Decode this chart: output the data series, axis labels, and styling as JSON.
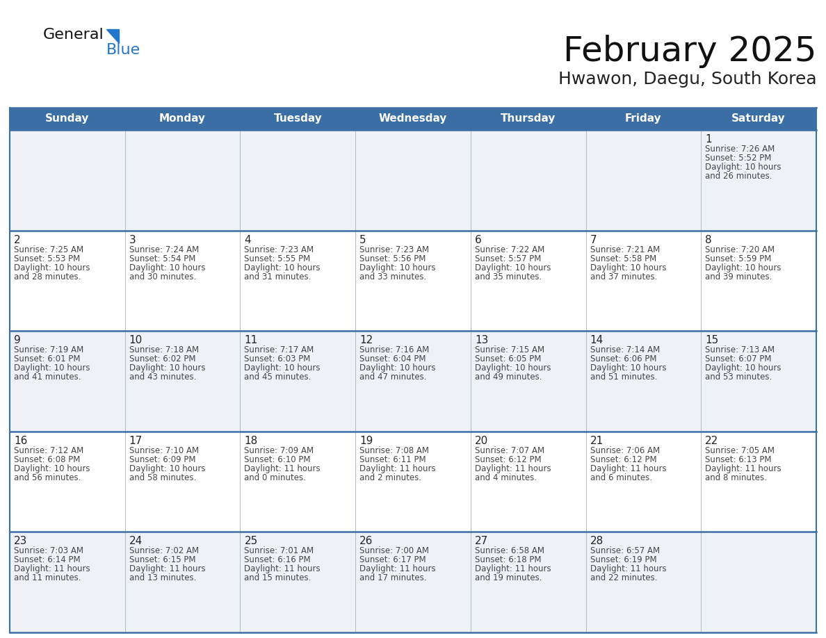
{
  "title": "February 2025",
  "subtitle": "Hwawon, Daegu, South Korea",
  "title_color": "#111111",
  "subtitle_color": "#222222",
  "header_bg": "#3a6ea5",
  "header_text_color": "#ffffff",
  "row_bg_light": "#eef2f7",
  "row_bg_white": "#ffffff",
  "cell_border_color": "#3a6ea5",
  "grid_line_color": "#b0b8c8",
  "days_of_week": [
    "Sunday",
    "Monday",
    "Tuesday",
    "Wednesday",
    "Thursday",
    "Friday",
    "Saturday"
  ],
  "calendar": [
    [
      {
        "day": "",
        "lines": []
      },
      {
        "day": "",
        "lines": []
      },
      {
        "day": "",
        "lines": []
      },
      {
        "day": "",
        "lines": []
      },
      {
        "day": "",
        "lines": []
      },
      {
        "day": "",
        "lines": []
      },
      {
        "day": "1",
        "lines": [
          "Sunrise: 7:26 AM",
          "Sunset: 5:52 PM",
          "Daylight: 10 hours",
          "and 26 minutes."
        ]
      }
    ],
    [
      {
        "day": "2",
        "lines": [
          "Sunrise: 7:25 AM",
          "Sunset: 5:53 PM",
          "Daylight: 10 hours",
          "and 28 minutes."
        ]
      },
      {
        "day": "3",
        "lines": [
          "Sunrise: 7:24 AM",
          "Sunset: 5:54 PM",
          "Daylight: 10 hours",
          "and 30 minutes."
        ]
      },
      {
        "day": "4",
        "lines": [
          "Sunrise: 7:23 AM",
          "Sunset: 5:55 PM",
          "Daylight: 10 hours",
          "and 31 minutes."
        ]
      },
      {
        "day": "5",
        "lines": [
          "Sunrise: 7:23 AM",
          "Sunset: 5:56 PM",
          "Daylight: 10 hours",
          "and 33 minutes."
        ]
      },
      {
        "day": "6",
        "lines": [
          "Sunrise: 7:22 AM",
          "Sunset: 5:57 PM",
          "Daylight: 10 hours",
          "and 35 minutes."
        ]
      },
      {
        "day": "7",
        "lines": [
          "Sunrise: 7:21 AM",
          "Sunset: 5:58 PM",
          "Daylight: 10 hours",
          "and 37 minutes."
        ]
      },
      {
        "day": "8",
        "lines": [
          "Sunrise: 7:20 AM",
          "Sunset: 5:59 PM",
          "Daylight: 10 hours",
          "and 39 minutes."
        ]
      }
    ],
    [
      {
        "day": "9",
        "lines": [
          "Sunrise: 7:19 AM",
          "Sunset: 6:01 PM",
          "Daylight: 10 hours",
          "and 41 minutes."
        ]
      },
      {
        "day": "10",
        "lines": [
          "Sunrise: 7:18 AM",
          "Sunset: 6:02 PM",
          "Daylight: 10 hours",
          "and 43 minutes."
        ]
      },
      {
        "day": "11",
        "lines": [
          "Sunrise: 7:17 AM",
          "Sunset: 6:03 PM",
          "Daylight: 10 hours",
          "and 45 minutes."
        ]
      },
      {
        "day": "12",
        "lines": [
          "Sunrise: 7:16 AM",
          "Sunset: 6:04 PM",
          "Daylight: 10 hours",
          "and 47 minutes."
        ]
      },
      {
        "day": "13",
        "lines": [
          "Sunrise: 7:15 AM",
          "Sunset: 6:05 PM",
          "Daylight: 10 hours",
          "and 49 minutes."
        ]
      },
      {
        "day": "14",
        "lines": [
          "Sunrise: 7:14 AM",
          "Sunset: 6:06 PM",
          "Daylight: 10 hours",
          "and 51 minutes."
        ]
      },
      {
        "day": "15",
        "lines": [
          "Sunrise: 7:13 AM",
          "Sunset: 6:07 PM",
          "Daylight: 10 hours",
          "and 53 minutes."
        ]
      }
    ],
    [
      {
        "day": "16",
        "lines": [
          "Sunrise: 7:12 AM",
          "Sunset: 6:08 PM",
          "Daylight: 10 hours",
          "and 56 minutes."
        ]
      },
      {
        "day": "17",
        "lines": [
          "Sunrise: 7:10 AM",
          "Sunset: 6:09 PM",
          "Daylight: 10 hours",
          "and 58 minutes."
        ]
      },
      {
        "day": "18",
        "lines": [
          "Sunrise: 7:09 AM",
          "Sunset: 6:10 PM",
          "Daylight: 11 hours",
          "and 0 minutes."
        ]
      },
      {
        "day": "19",
        "lines": [
          "Sunrise: 7:08 AM",
          "Sunset: 6:11 PM",
          "Daylight: 11 hours",
          "and 2 minutes."
        ]
      },
      {
        "day": "20",
        "lines": [
          "Sunrise: 7:07 AM",
          "Sunset: 6:12 PM",
          "Daylight: 11 hours",
          "and 4 minutes."
        ]
      },
      {
        "day": "21",
        "lines": [
          "Sunrise: 7:06 AM",
          "Sunset: 6:12 PM",
          "Daylight: 11 hours",
          "and 6 minutes."
        ]
      },
      {
        "day": "22",
        "lines": [
          "Sunrise: 7:05 AM",
          "Sunset: 6:13 PM",
          "Daylight: 11 hours",
          "and 8 minutes."
        ]
      }
    ],
    [
      {
        "day": "23",
        "lines": [
          "Sunrise: 7:03 AM",
          "Sunset: 6:14 PM",
          "Daylight: 11 hours",
          "and 11 minutes."
        ]
      },
      {
        "day": "24",
        "lines": [
          "Sunrise: 7:02 AM",
          "Sunset: 6:15 PM",
          "Daylight: 11 hours",
          "and 13 minutes."
        ]
      },
      {
        "day": "25",
        "lines": [
          "Sunrise: 7:01 AM",
          "Sunset: 6:16 PM",
          "Daylight: 11 hours",
          "and 15 minutes."
        ]
      },
      {
        "day": "26",
        "lines": [
          "Sunrise: 7:00 AM",
          "Sunset: 6:17 PM",
          "Daylight: 11 hours",
          "and 17 minutes."
        ]
      },
      {
        "day": "27",
        "lines": [
          "Sunrise: 6:58 AM",
          "Sunset: 6:18 PM",
          "Daylight: 11 hours",
          "and 19 minutes."
        ]
      },
      {
        "day": "28",
        "lines": [
          "Sunrise: 6:57 AM",
          "Sunset: 6:19 PM",
          "Daylight: 11 hours",
          "and 22 minutes."
        ]
      },
      {
        "day": "",
        "lines": []
      }
    ]
  ],
  "logo_general_color": "#111111",
  "logo_blue_color": "#2277cc",
  "logo_triangle_color": "#2277cc",
  "title_fontsize": 36,
  "subtitle_fontsize": 18,
  "header_fontsize": 11,
  "day_num_fontsize": 11,
  "info_fontsize": 8.5
}
